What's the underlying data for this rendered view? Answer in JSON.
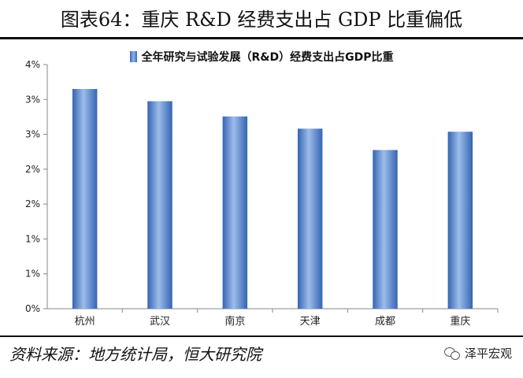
{
  "title": "图表64：重庆 R&D 经费支出占 GDP 比重偏低",
  "source": "资料来源：地方统计局，恒大研究院",
  "brand": "泽平宏观",
  "brand_icon": "wechat-icon",
  "chart_data": {
    "type": "bar",
    "categories": [
      "杭州",
      "武汉",
      "南京",
      "天津",
      "成都",
      "重庆"
    ],
    "series": [
      {
        "name": "全年研究与试验发展（R&D）经费支出占GDP比重",
        "values": [
          3.6,
          3.4,
          3.15,
          2.95,
          2.6,
          2.9
        ]
      }
    ],
    "yticks": [
      "0%",
      "1%",
      "1%",
      "2%",
      "2%",
      "3%",
      "3%",
      "4%"
    ],
    "ylim": [
      0,
      4
    ],
    "legend_position": "top",
    "grid": false,
    "bar_color": "#4a7cc7"
  }
}
